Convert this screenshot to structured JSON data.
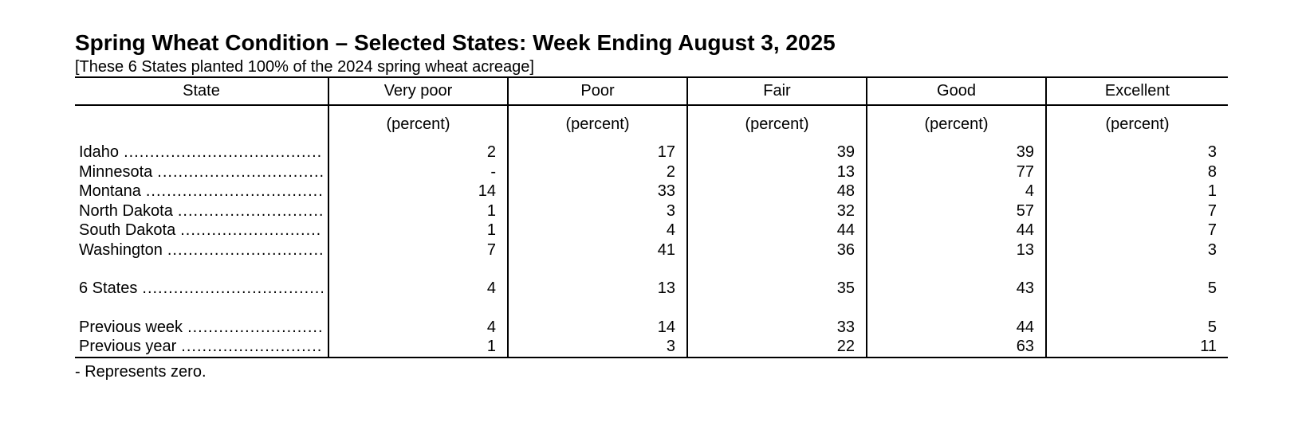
{
  "title": "Spring Wheat Condition – Selected States: Week Ending August 3, 2025",
  "subtitle": "[These 6 States planted 100% of the 2024 spring wheat acreage]",
  "table": {
    "columns": [
      "State",
      "Very poor",
      "Poor",
      "Fair",
      "Good",
      "Excellent"
    ],
    "units": [
      "",
      "(percent)",
      "(percent)",
      "(percent)",
      "(percent)",
      "(percent)"
    ],
    "states": [
      {
        "name": "Idaho",
        "values": [
          "2",
          "17",
          "39",
          "39",
          "3"
        ]
      },
      {
        "name": "Minnesota",
        "values": [
          "-",
          "2",
          "13",
          "77",
          "8"
        ]
      },
      {
        "name": "Montana",
        "values": [
          "14",
          "33",
          "48",
          "4",
          "1"
        ]
      },
      {
        "name": "North Dakota",
        "values": [
          "1",
          "3",
          "32",
          "57",
          "7"
        ]
      },
      {
        "name": "South Dakota",
        "values": [
          "1",
          "4",
          "44",
          "44",
          "7"
        ]
      },
      {
        "name": "Washington",
        "values": [
          "7",
          "41",
          "36",
          "13",
          "3"
        ]
      }
    ],
    "total": {
      "name": "6 States",
      "values": [
        "4",
        "13",
        "35",
        "43",
        "5"
      ]
    },
    "previous_week": {
      "name": "Previous week",
      "values": [
        "4",
        "14",
        "33",
        "44",
        "5"
      ]
    },
    "previous_year": {
      "name": "Previous year",
      "values": [
        "1",
        "3",
        "22",
        "63",
        "11"
      ]
    }
  },
  "footnote": "- Represents zero."
}
